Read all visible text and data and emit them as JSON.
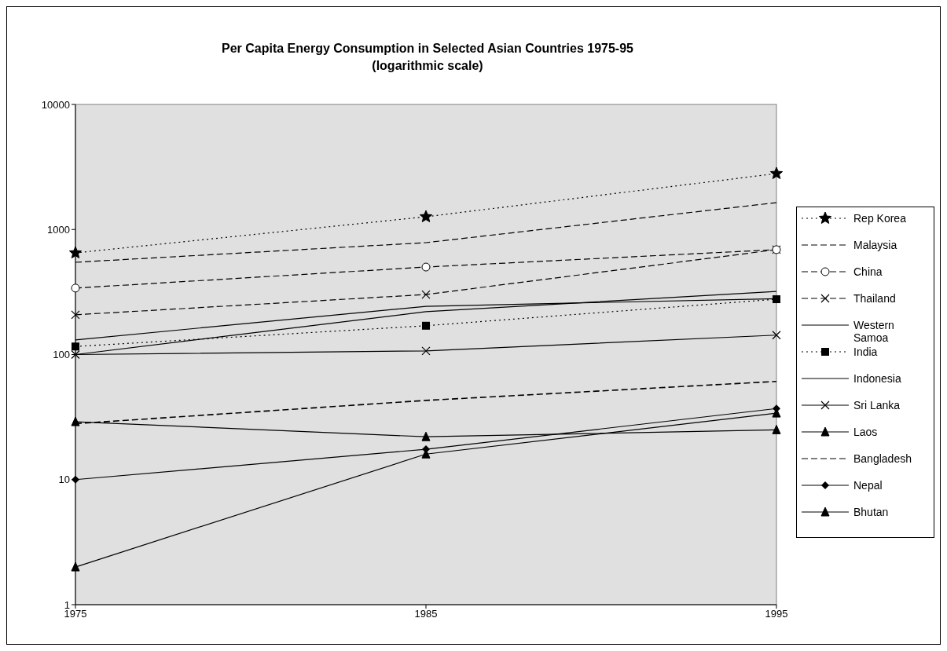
{
  "chart_data": {
    "type": "line",
    "title": "Per Capita Energy Consumption in Selected Asian Countries 1975-95",
    "subtitle": "(logarithmic scale)",
    "x": [
      1975,
      1985,
      1995
    ],
    "xlim": [
      1975,
      1995
    ],
    "xticks": [
      1975,
      1985,
      1995
    ],
    "ylim": [
      1,
      10000
    ],
    "yticks": [
      1,
      10,
      100,
      1000,
      10000
    ],
    "log": "y",
    "grid": false,
    "legend": "right",
    "series": [
      {
        "name": "Rep Korea",
        "color": "#000000",
        "values": [
          650,
          1265,
          2800
        ],
        "marker": "star",
        "line_style": "dotted"
      },
      {
        "name": "Malaysia",
        "color": "#000000",
        "values": [
          547,
          785,
          1640
        ],
        "marker": "none",
        "line_style": "dashed"
      },
      {
        "name": "China",
        "color": "#000000",
        "values": [
          340,
          501,
          690
        ],
        "marker": "circle",
        "line_style": "dashed"
      },
      {
        "name": "Thailand",
        "color": "#000000",
        "values": [
          208,
          302,
          690
        ],
        "marker": "cross",
        "line_style": "dashed"
      },
      {
        "name": "Western Samoa",
        "color": "#000000",
        "values": [
          131,
          243,
          280
        ],
        "marker": "none",
        "line_style": "solid"
      },
      {
        "name": "India",
        "color": "#000000",
        "values": [
          116,
          170,
          277
        ],
        "marker": "square",
        "line_style": "dotted"
      },
      {
        "name": "Indonesia",
        "color": "#000000",
        "values": [
          100,
          220,
          320
        ],
        "marker": "none",
        "line_style": "solid"
      },
      {
        "name": "Sri Lanka",
        "color": "#000000",
        "values": [
          100,
          107,
          143
        ],
        "marker": "cross",
        "line_style": "solid"
      },
      {
        "name": "Laos",
        "color": "#000000",
        "values": [
          29,
          22,
          25
        ],
        "marker": "triangle",
        "line_style": "solid"
      },
      {
        "name": "Bangladesh",
        "color": "#000000",
        "values": [
          28,
          43,
          61
        ],
        "marker": "none",
        "line_style": "dashed"
      },
      {
        "name": "Nepal",
        "color": "#000000",
        "values": [
          10,
          17.5,
          37
        ],
        "marker": "diamond",
        "line_style": "solid"
      },
      {
        "name": "Bhutan",
        "color": "#000000",
        "values": [
          2,
          16,
          34
        ],
        "marker": "triangle",
        "line_style": "solid"
      }
    ]
  }
}
